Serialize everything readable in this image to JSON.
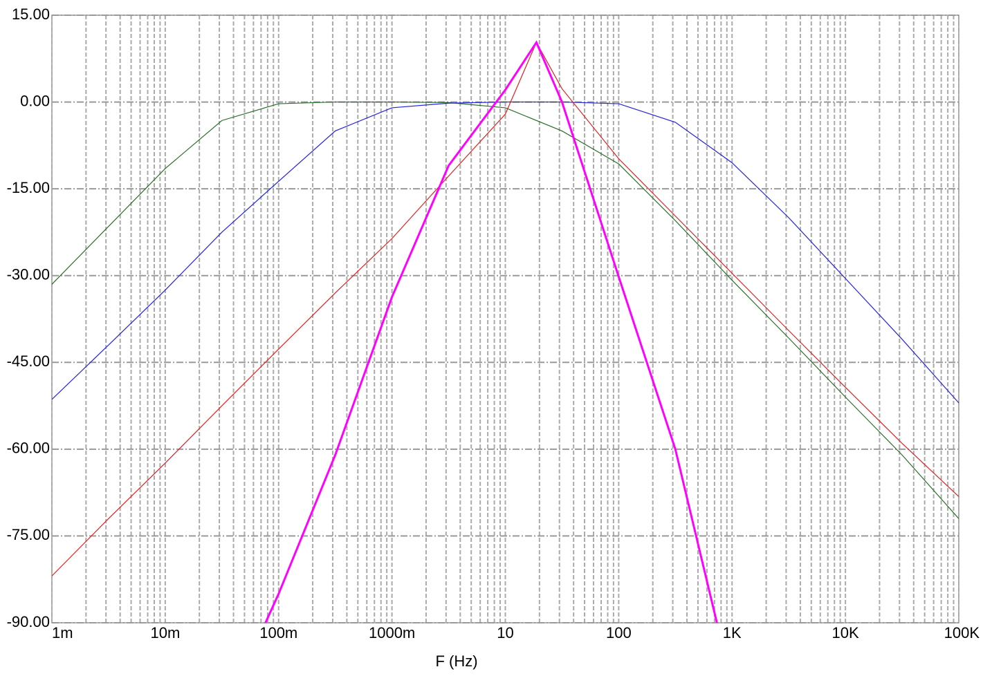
{
  "chart_data": {
    "type": "line",
    "x_label": "F (Hz)",
    "x_log": true,
    "grid": true,
    "minor_grid": true,
    "xlim": [
      0.001,
      100000
    ],
    "ylim": [
      -90,
      15
    ],
    "xticks": [
      {
        "value": 0.001,
        "label": "1m"
      },
      {
        "value": 0.01,
        "label": "10m"
      },
      {
        "value": 0.1,
        "label": "100m"
      },
      {
        "value": 1,
        "label": "1000m"
      },
      {
        "value": 10,
        "label": "10"
      },
      {
        "value": 100,
        "label": "100"
      },
      {
        "value": 1000,
        "label": "1K"
      },
      {
        "value": 10000,
        "label": "10K"
      },
      {
        "value": 100000,
        "label": "100K"
      }
    ],
    "yticks": [
      {
        "value": 15,
        "label": "15.00"
      },
      {
        "value": 0,
        "label": "0.00"
      },
      {
        "value": -15,
        "label": "-15.00"
      },
      {
        "value": -30,
        "label": "-30.00"
      },
      {
        "value": -45,
        "label": "-45.00"
      },
      {
        "value": -60,
        "label": "-60.00"
      },
      {
        "value": -75,
        "label": "-75.00"
      },
      {
        "value": -90,
        "label": "-90.00"
      }
    ],
    "series": [
      {
        "color": "#2a6e2a",
        "width": 1.2,
        "x": [
          0.001,
          0.00316,
          0.01,
          0.0316,
          0.1,
          0.316,
          1,
          3.16,
          10,
          31.6,
          100,
          316,
          1000,
          3162,
          10000,
          31623,
          100000
        ],
        "values": [
          -31.5,
          -21.5,
          -11.5,
          -3.2,
          -0.3,
          0,
          0,
          -0.1,
          -1,
          -5,
          -10.7,
          -20.5,
          -30.8,
          -40.8,
          -51,
          -61,
          -72
        ]
      },
      {
        "color": "#2222dd",
        "width": 1.2,
        "x": [
          0.001,
          0.00316,
          0.01,
          0.0316,
          0.1,
          0.316,
          1,
          3.16,
          10,
          31.6,
          100,
          316,
          1000,
          3162,
          10000,
          31623,
          100000
        ],
        "values": [
          -51.4,
          -42,
          -32.5,
          -22.5,
          -13.7,
          -5,
          -1,
          -0.2,
          0,
          0,
          -0.3,
          -3.5,
          -10.5,
          -20,
          -30.5,
          -41,
          -52
        ]
      },
      {
        "color": "#e02020",
        "width": 1.2,
        "x": [
          0.001,
          0.00316,
          0.01,
          0.0316,
          0.1,
          0.316,
          1,
          3.16,
          10,
          18.8,
          31.6,
          100,
          316,
          1000,
          3162,
          10000,
          31623,
          100000
        ],
        "values": [
          -81.9,
          -72,
          -62.4,
          -52.5,
          -42.7,
          -33,
          -23.6,
          -12.8,
          -2.1,
          10.3,
          2.3,
          -9.8,
          -19.7,
          -29.6,
          -39.5,
          -49.3,
          -59,
          -68.2
        ]
      },
      {
        "color": "#ff00ff",
        "width": 3,
        "x": [
          0.0766,
          0.1,
          0.316,
          1,
          3.16,
          10,
          18.8,
          31.6,
          100,
          316,
          735
        ],
        "values": [
          -90,
          -85,
          -61,
          -33.7,
          -11,
          2.1,
          10.3,
          0,
          -30.2,
          -60,
          -90
        ]
      }
    ]
  }
}
